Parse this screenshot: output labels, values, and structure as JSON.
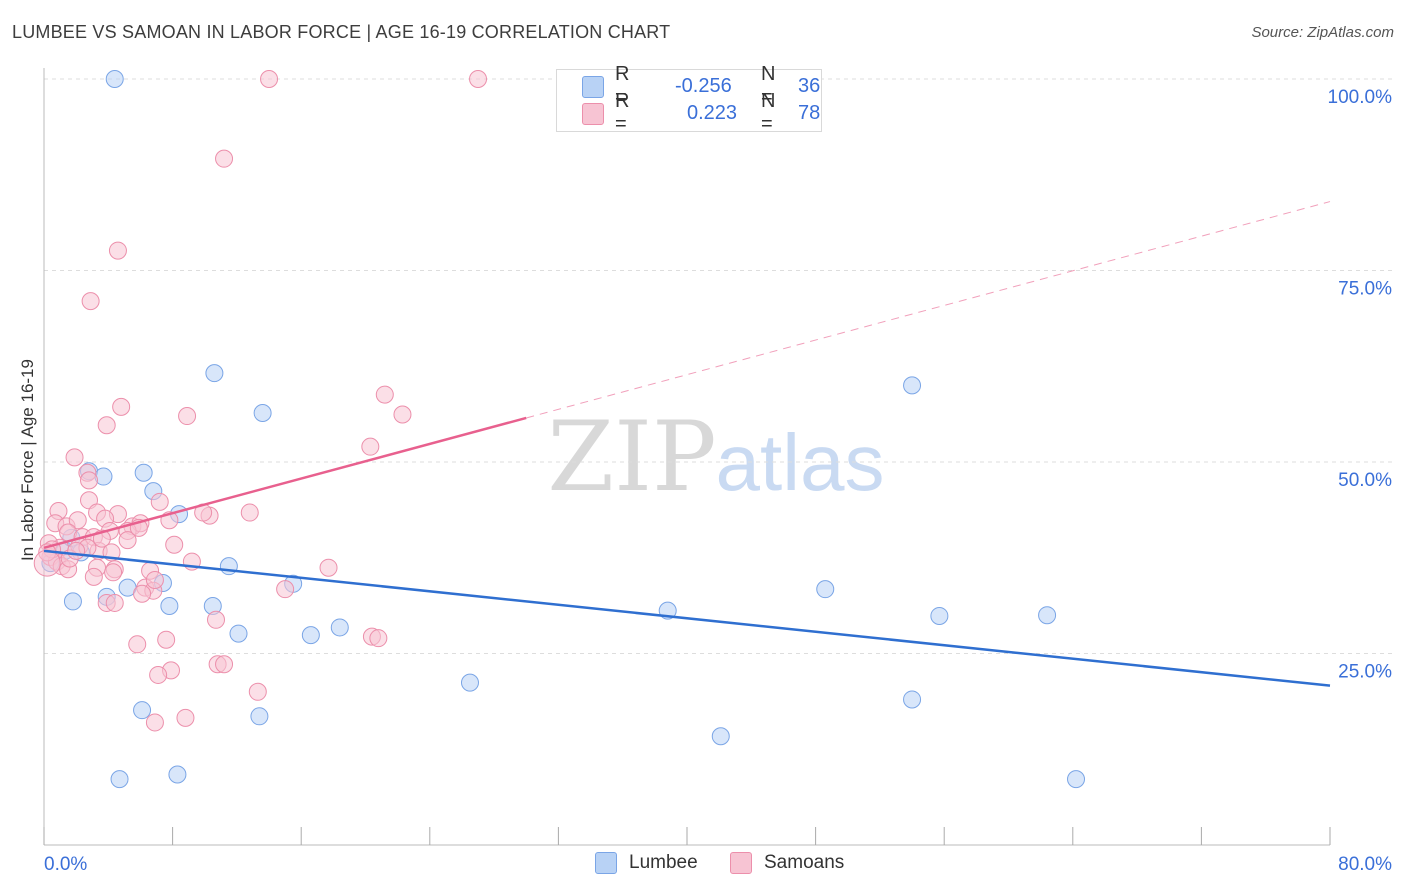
{
  "header": {
    "title": "LUMBEE VS SAMOAN IN LABOR FORCE | AGE 16-19 CORRELATION CHART",
    "source": "Source: ZipAtlas.com"
  },
  "watermark": {
    "zip": "ZIP",
    "atlas": "atlas"
  },
  "legend": {
    "r_label": "R =",
    "n_label": "N =",
    "lumbee": {
      "r": "-0.256",
      "n": "36"
    },
    "samoans": {
      "r": "0.223",
      "n": "78"
    }
  },
  "colors": {
    "lumbee_fill": "#b8d2f5",
    "lumbee_stroke": "#7aa5e6",
    "lumbee_line": "#2f6fd0",
    "samoan_fill": "#f7c4d3",
    "samoan_stroke": "#ec8fab",
    "samoan_line": "#e8608e",
    "axis_text": "#3a6fd8",
    "grid": "#dddddd"
  },
  "chart_data": {
    "type": "scatter",
    "title": "LUMBEE VS SAMOAN IN LABOR FORCE | AGE 16-19 CORRELATION CHART",
    "xlabel": "",
    "ylabel": "In Labor Force | Age 16-19",
    "xlim": [
      0,
      80
    ],
    "ylim": [
      0,
      100
    ],
    "x_tick_labels": [
      "0.0%",
      "80.0%"
    ],
    "y_tick_labels": [
      "100.0%",
      "75.0%",
      "50.0%",
      "25.0%"
    ],
    "y_ticks": [
      100,
      75,
      50,
      25
    ],
    "series": [
      {
        "name": "Lumbee",
        "r": -0.256,
        "n": 36,
        "trend": {
          "x0": 0,
          "y0": 38.4,
          "x1": 80,
          "y1": 20.8,
          "dashed_from": null
        },
        "points": [
          [
            4.4,
            100
          ],
          [
            0.4,
            36.8
          ],
          [
            1.3,
            38.4
          ],
          [
            1.7,
            40.1
          ],
          [
            2.3,
            38.2
          ],
          [
            1.8,
            31.8
          ],
          [
            2.8,
            48.8
          ],
          [
            3.7,
            48.1
          ],
          [
            3.9,
            32.4
          ],
          [
            4.7,
            8.6
          ],
          [
            5.2,
            33.6
          ],
          [
            6.1,
            17.6
          ],
          [
            6.2,
            48.6
          ],
          [
            6.8,
            46.2
          ],
          [
            7.4,
            34.2
          ],
          [
            7.8,
            31.2
          ],
          [
            8.4,
            43.2
          ],
          [
            8.3,
            9.2
          ],
          [
            10.6,
            61.6
          ],
          [
            10.5,
            31.2
          ],
          [
            11.5,
            36.4
          ],
          [
            12.1,
            27.6
          ],
          [
            13.4,
            16.8
          ],
          [
            13.6,
            56.4
          ],
          [
            15.5,
            34.1
          ],
          [
            16.6,
            27.4
          ],
          [
            18.4,
            28.4
          ],
          [
            26.5,
            21.2
          ],
          [
            38.8,
            30.6
          ],
          [
            42.1,
            14.2
          ],
          [
            48.6,
            33.4
          ],
          [
            54.0,
            60.0
          ],
          [
            54.0,
            19.0
          ],
          [
            55.7,
            29.9
          ],
          [
            62.4,
            30.0
          ],
          [
            64.2,
            8.6
          ]
        ]
      },
      {
        "name": "Samoans",
        "r": 0.223,
        "n": 78,
        "trend": {
          "x0": 0,
          "y0": 38.8,
          "x1": 80,
          "y1": 84.0,
          "dashed_from": 30
        },
        "points": [
          [
            14.0,
            100
          ],
          [
            27.0,
            100
          ],
          [
            11.2,
            89.6
          ],
          [
            4.6,
            77.6
          ],
          [
            2.9,
            71.0
          ],
          [
            4.8,
            57.2
          ],
          [
            3.9,
            54.8
          ],
          [
            8.9,
            56.0
          ],
          [
            21.2,
            58.8
          ],
          [
            22.3,
            56.2
          ],
          [
            20.3,
            52.0
          ],
          [
            1.9,
            50.6
          ],
          [
            2.7,
            48.6
          ],
          [
            2.8,
            47.6
          ],
          [
            2.8,
            45.0
          ],
          [
            7.2,
            44.8
          ],
          [
            0.9,
            43.6
          ],
          [
            3.3,
            43.4
          ],
          [
            4.6,
            43.2
          ],
          [
            10.3,
            43.0
          ],
          [
            12.8,
            43.4
          ],
          [
            0.7,
            42.0
          ],
          [
            1.4,
            41.6
          ],
          [
            2.1,
            42.4
          ],
          [
            3.8,
            42.6
          ],
          [
            5.5,
            41.6
          ],
          [
            6.0,
            42.0
          ],
          [
            7.8,
            42.4
          ],
          [
            5.2,
            41.0
          ],
          [
            1.5,
            40.8
          ],
          [
            2.4,
            40.2
          ],
          [
            3.1,
            40.2
          ],
          [
            4.1,
            41.0
          ],
          [
            1.0,
            38.8
          ],
          [
            2.2,
            39.0
          ],
          [
            3.4,
            38.4
          ],
          [
            5.2,
            39.8
          ],
          [
            8.1,
            39.2
          ],
          [
            0.4,
            37.6
          ],
          [
            0.8,
            37.0
          ],
          [
            1.1,
            36.4
          ],
          [
            1.5,
            36.0
          ],
          [
            3.3,
            36.2
          ],
          [
            4.4,
            36.0
          ],
          [
            9.2,
            37.0
          ],
          [
            17.7,
            36.2
          ],
          [
            3.1,
            35.0
          ],
          [
            4.3,
            35.6
          ],
          [
            6.6,
            35.8
          ],
          [
            6.3,
            33.6
          ],
          [
            6.8,
            33.2
          ],
          [
            15.0,
            33.4
          ],
          [
            6.1,
            32.8
          ],
          [
            3.9,
            31.6
          ],
          [
            4.4,
            31.6
          ],
          [
            10.7,
            29.4
          ],
          [
            20.4,
            27.2
          ],
          [
            20.8,
            27.0
          ],
          [
            7.6,
            26.8
          ],
          [
            5.8,
            26.2
          ],
          [
            10.8,
            23.6
          ],
          [
            11.2,
            23.6
          ],
          [
            7.9,
            22.8
          ],
          [
            7.1,
            22.2
          ],
          [
            13.3,
            20.0
          ],
          [
            8.8,
            16.6
          ],
          [
            6.9,
            16.0
          ],
          [
            0.3,
            39.4
          ],
          [
            0.5,
            38.6
          ],
          [
            0.2,
            38.2
          ],
          [
            2.7,
            38.8
          ],
          [
            3.6,
            40.0
          ],
          [
            5.9,
            41.4
          ],
          [
            1.6,
            37.4
          ],
          [
            2.0,
            38.4
          ],
          [
            4.2,
            38.2
          ],
          [
            6.9,
            34.6
          ],
          [
            9.9,
            43.4
          ]
        ]
      }
    ]
  },
  "bottom_legend": {
    "lumbee": "Lumbee",
    "samoans": "Samoans"
  }
}
